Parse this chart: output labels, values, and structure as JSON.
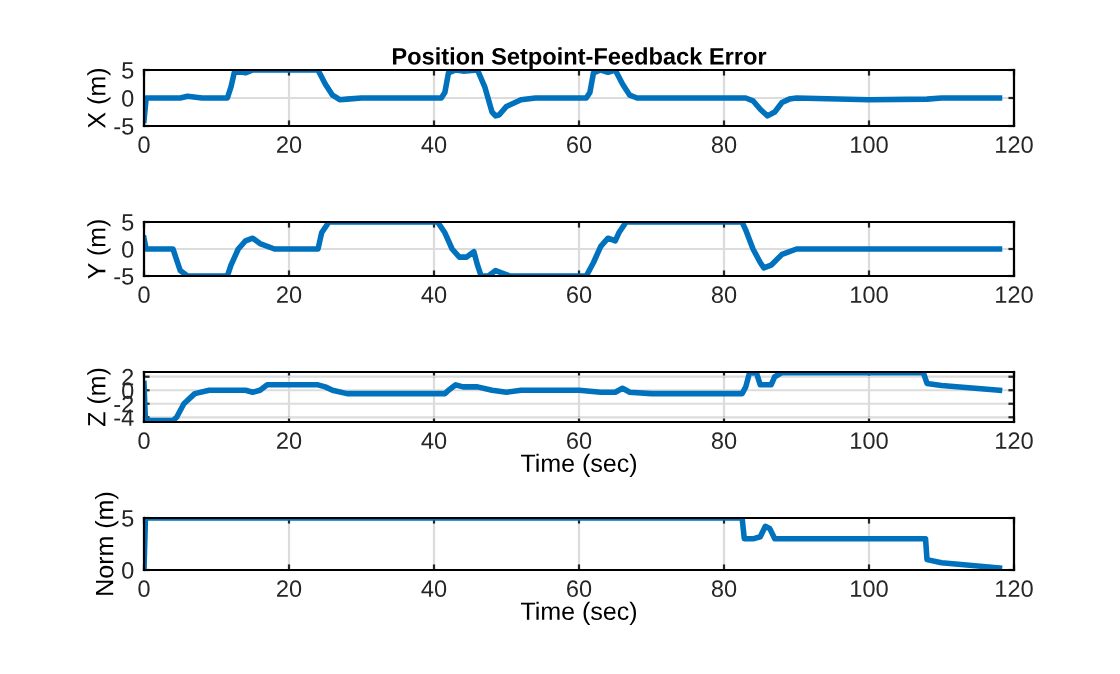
{
  "chart_data": [
    {
      "type": "line",
      "title": "Position Setpoint-Feedback Error",
      "ylabel": "X (m)",
      "xlim": [
        0,
        120
      ],
      "xticks": [
        0,
        20,
        40,
        60,
        80,
        100,
        120
      ],
      "ylim": [
        -5,
        5
      ],
      "yticks": [
        -5,
        0,
        5
      ],
      "grid": true,
      "line_style": "solid",
      "marker": "none",
      "series": [
        {
          "color": "#0072bd",
          "x": [
            0,
            0.3,
            5,
            6,
            8,
            11.5,
            12,
            12.5,
            14,
            15,
            24,
            25,
            26,
            27,
            28,
            30,
            41,
            41.5,
            42,
            43,
            44,
            46,
            47,
            48,
            48.5,
            49,
            50,
            52,
            54,
            61,
            61.5,
            62,
            63,
            64,
            65,
            66,
            67,
            68,
            83,
            84,
            85,
            86,
            87,
            88,
            89,
            90,
            100,
            108,
            110,
            118
          ],
          "values": [
            -4,
            0,
            0,
            0.3,
            0,
            0,
            2,
            4.8,
            4.5,
            5,
            5,
            2.5,
            0.5,
            -0.3,
            -0.2,
            0,
            0,
            1,
            4.5,
            5,
            4.8,
            5,
            2,
            -2.5,
            -3.2,
            -3,
            -1.5,
            -0.3,
            0,
            0,
            1,
            4.5,
            5,
            4.6,
            5,
            2.5,
            0.5,
            0,
            0,
            -0.5,
            -2,
            -3.2,
            -2.5,
            -0.8,
            -0.2,
            0,
            -0.3,
            -0.2,
            0,
            0
          ]
        }
      ]
    },
    {
      "type": "line",
      "ylabel": "Y (m)",
      "xlim": [
        0,
        120
      ],
      "xticks": [
        0,
        20,
        40,
        60,
        80,
        100,
        120
      ],
      "ylim": [
        -5,
        5
      ],
      "yticks": [
        -5,
        0,
        5
      ],
      "grid": true,
      "line_style": "solid",
      "marker": "none",
      "series": [
        {
          "color": "#0072bd",
          "x": [
            0,
            0.3,
            4,
            4.5,
            5,
            6,
            11.5,
            12,
            13,
            14,
            15,
            16,
            18,
            24,
            24.5,
            25.5,
            40.5,
            41.5,
            42.5,
            43.5,
            44.5,
            45.5,
            46,
            46.5,
            47.5,
            48.5,
            49.5,
            50.5,
            61,
            62,
            63,
            64,
            65,
            65.5,
            66.5,
            82.5,
            83,
            84,
            85,
            85.5,
            86.5,
            88,
            90,
            118
          ],
          "values": [
            2,
            0,
            0,
            -2,
            -4,
            -5,
            -5,
            -3,
            0,
            1.5,
            2,
            1,
            0,
            0,
            3,
            5,
            5,
            3,
            0,
            -1.5,
            -1.5,
            -0.5,
            -3,
            -5,
            -5,
            -4,
            -4.5,
            -5,
            -5,
            -2.5,
            0.5,
            2,
            1.5,
            3,
            5,
            5,
            3.5,
            0,
            -2.5,
            -3.5,
            -3,
            -1,
            0,
            0
          ]
        }
      ]
    },
    {
      "type": "line",
      "ylabel": "Z (m)",
      "xlabel": "Time (sec)",
      "xlim": [
        0,
        120
      ],
      "xticks": [
        0,
        20,
        40,
        60,
        80,
        100,
        120
      ],
      "ylim": [
        -4.7,
        2.7
      ],
      "yticks": [
        -4,
        -2,
        0,
        2
      ],
      "grid": true,
      "line_style": "solid",
      "marker": "none",
      "series": [
        {
          "color": "#0072bd",
          "x": [
            0,
            0.2,
            4,
            4.5,
            5.5,
            7,
            9,
            14,
            15,
            16,
            17,
            24,
            25,
            26,
            28,
            30,
            41.5,
            42,
            43,
            44,
            46,
            48,
            50,
            52,
            60,
            63,
            65,
            66,
            67,
            70,
            82.5,
            83,
            83.5,
            84,
            84.5,
            85,
            86.5,
            87,
            88,
            107.5,
            108,
            110,
            118
          ],
          "values": [
            1,
            -4.5,
            -4.5,
            -4,
            -2,
            -0.5,
            0,
            0,
            -0.3,
            0,
            0.8,
            0.8,
            0.5,
            0,
            -0.5,
            -0.5,
            -0.5,
            0,
            0.8,
            0.5,
            0.5,
            0,
            -0.3,
            0,
            0,
            -0.3,
            -0.3,
            0.3,
            -0.3,
            -0.5,
            -0.5,
            0.5,
            2.5,
            2.6,
            2.5,
            0.8,
            0.8,
            2,
            2.6,
            2.6,
            1,
            0.7,
            0
          ]
        }
      ]
    },
    {
      "type": "line",
      "ylabel": "Norm (m)",
      "xlabel": "Time (sec)",
      "xlim": [
        0,
        120
      ],
      "xticks": [
        0,
        20,
        40,
        60,
        80,
        100,
        120
      ],
      "ylim": [
        0,
        5
      ],
      "yticks": [
        0,
        5
      ],
      "grid": true,
      "line_style": "solid",
      "marker": "none",
      "series": [
        {
          "color": "#0072bd",
          "x": [
            0,
            0.2,
            82.5,
            82.8,
            84,
            85,
            85.7,
            86.3,
            87,
            107.8,
            108,
            110,
            118
          ],
          "values": [
            0,
            5,
            5,
            3,
            3,
            3.2,
            4.2,
            4,
            3,
            3,
            1,
            0.7,
            0.2
          ]
        }
      ]
    }
  ]
}
